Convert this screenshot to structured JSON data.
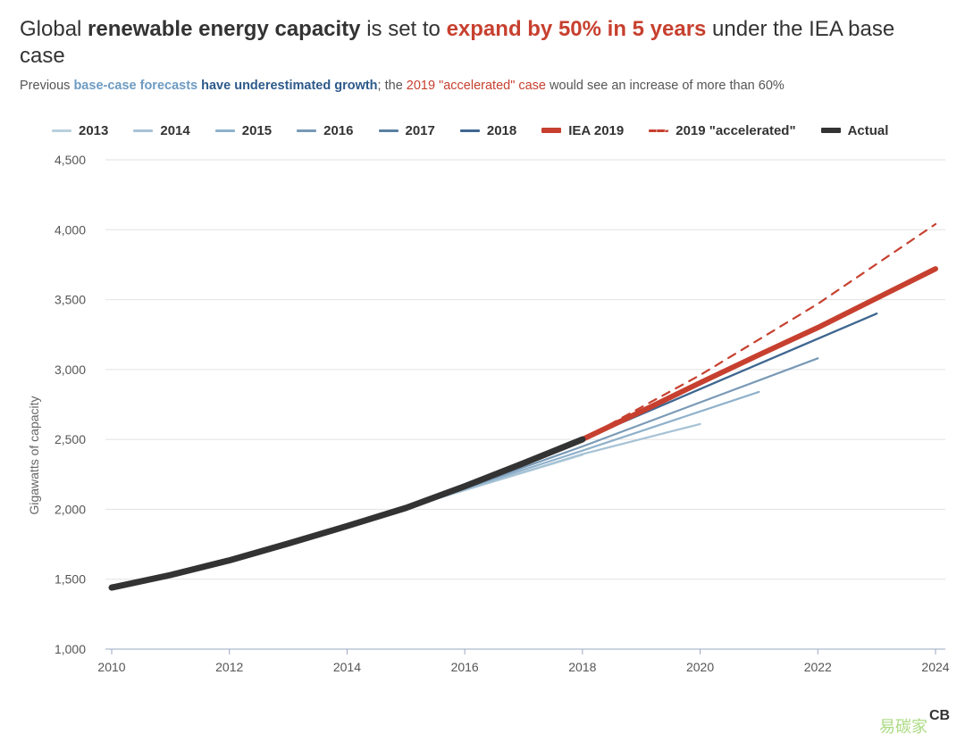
{
  "header": {
    "title_parts": [
      "Global ",
      "renewable energy capacity",
      " is set to ",
      "expand by 50% in 5 years",
      " under the IEA base case"
    ],
    "subtitle_parts": [
      "Previous ",
      "base-case forecasts",
      " have underestimated growth",
      "; the ",
      "2019 \"accelerated\" case",
      "  would see an increase of more than 60%"
    ]
  },
  "colors": {
    "2013": "#b9d0dd",
    "2014": "#a6c2d5",
    "2015": "#8fb1cb",
    "2016": "#7899b6",
    "2017": "#5a7fa1",
    "2018": "#3f6790",
    "iea2019": "#c7402f",
    "accelerated": "#c7402f",
    "actual": "#333333",
    "grid": "#e2e2e2"
  },
  "watermark": {
    "text1": "易碳家",
    "text2": "CB"
  },
  "chart_data": {
    "type": "line",
    "title": "",
    "xlabel": "",
    "ylabel": "Gigawatts of capacity",
    "xlim": [
      2010,
      2024
    ],
    "ylim": [
      1000,
      4500
    ],
    "x_ticks": [
      2010,
      2012,
      2014,
      2016,
      2018,
      2020,
      2022,
      2024
    ],
    "y_ticks": [
      1000,
      1500,
      2000,
      2500,
      3000,
      3500,
      4000,
      4500
    ],
    "y_tick_labels": [
      "1,000",
      "1,500",
      "2,000",
      "2,500",
      "3,000",
      "3,500",
      "4,000",
      "4,500"
    ],
    "grid": true,
    "legend_position": "top",
    "series": [
      {
        "name": "2013",
        "color_key": "2013",
        "style": "solid",
        "x": [
          2015,
          2018
        ],
        "y": [
          2010,
          2390
        ]
      },
      {
        "name": "2014",
        "color_key": "2014",
        "style": "solid",
        "x": [
          2015,
          2018,
          2020
        ],
        "y": [
          2010,
          2395,
          2610
        ]
      },
      {
        "name": "2015",
        "color_key": "2015",
        "style": "solid",
        "x": [
          2015,
          2018,
          2021
        ],
        "y": [
          2010,
          2420,
          2840
        ]
      },
      {
        "name": "2016",
        "color_key": "2016",
        "style": "solid",
        "x": [
          2016,
          2018,
          2022
        ],
        "y": [
          2150,
          2450,
          3080
        ]
      },
      {
        "name": "2017",
        "color_key": "2017",
        "style": "solid",
        "x": [
          2017,
          2018,
          2023
        ],
        "y": [
          2330,
          2500,
          3400
        ]
      },
      {
        "name": "2018",
        "color_key": "2018",
        "style": "solid",
        "x": [
          2018,
          2023
        ],
        "y": [
          2500,
          3400
        ]
      },
      {
        "name": "IEA 2019",
        "color_key": "iea2019",
        "style": "thick",
        "x": [
          2018,
          2019,
          2020,
          2021,
          2022,
          2023,
          2024
        ],
        "y": [
          2500,
          2700,
          2905,
          3105,
          3300,
          3510,
          3720
        ]
      },
      {
        "name": "2019 \"accelerated\"",
        "color_key": "accelerated",
        "style": "dashed",
        "x": [
          2018,
          2020,
          2022,
          2024
        ],
        "y": [
          2500,
          2960,
          3470,
          4040
        ]
      },
      {
        "name": "Actual",
        "color_key": "actual",
        "style": "actual",
        "x": [
          2010,
          2011,
          2012,
          2013,
          2014,
          2015,
          2016,
          2017,
          2018
        ],
        "y": [
          1440,
          1530,
          1635,
          1755,
          1880,
          2010,
          2165,
          2330,
          2500
        ]
      }
    ]
  }
}
